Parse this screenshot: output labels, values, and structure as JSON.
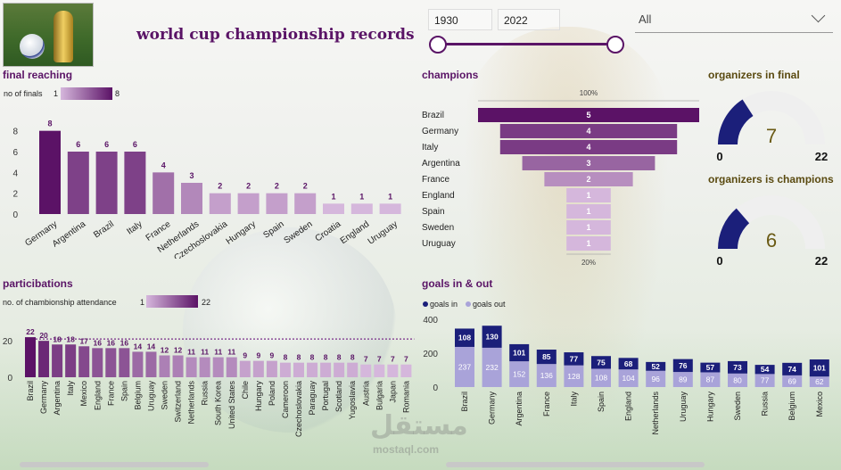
{
  "header": {
    "title": "world cup championship records",
    "year_from": "1930",
    "year_to": "2022",
    "filter_value": "All"
  },
  "colors": {
    "accent": "#5a1466",
    "navy": "#1b1f7a",
    "lavender": "#a9a3d9",
    "gauge_bg": "#efefef"
  },
  "final_reaching": {
    "title": "final reaching",
    "legend_label": "no of finals",
    "legend_min": "1",
    "legend_max": "8",
    "chart_data": {
      "type": "bar",
      "categories": [
        "Germany",
        "Argentina",
        "Brazil",
        "Italy",
        "France",
        "Netherlands",
        "Czechoslovakia",
        "Hungary",
        "Spain",
        "Sweden",
        "Croatia",
        "England",
        "Uruguay"
      ],
      "values": [
        8,
        6,
        6,
        6,
        4,
        3,
        2,
        2,
        2,
        2,
        1,
        1,
        1
      ],
      "yticks": [
        0,
        2,
        4,
        6,
        8
      ],
      "ylim": [
        0,
        9
      ]
    }
  },
  "champions": {
    "title": "champions",
    "top_pct": "100%",
    "bottom_pct": "20%",
    "chart_data": {
      "type": "bar",
      "orientation": "funnel",
      "categories": [
        "Brazil",
        "Germany",
        "Italy",
        "Argentina",
        "France",
        "England",
        "Spain",
        "Sweden",
        "Uruguay"
      ],
      "values": [
        5,
        4,
        4,
        3,
        2,
        1,
        1,
        1,
        1
      ]
    }
  },
  "organizers_in_final": {
    "title": "organizers in final",
    "value": 7,
    "min": "0",
    "max": "22"
  },
  "organizers_champions": {
    "title": "organizers is champions",
    "value": 6,
    "min": "0",
    "max": "22"
  },
  "participations": {
    "title": "particibations",
    "legend_label": "no. of chambionship attendance",
    "legend_min": "1",
    "legend_max": "22",
    "chart_data": {
      "type": "bar",
      "categories": [
        "Brazil",
        "Germany",
        "Argentina",
        "Italy",
        "Mexico",
        "England",
        "France",
        "Spain",
        "Belgium",
        "Uruguay",
        "Sweden",
        "Switzerland",
        "Netherlands",
        "Russia",
        "South Korea",
        "United States",
        "Chile",
        "Hungary",
        "Poland",
        "Cameroon",
        "Czechoslovakia",
        "Paraguay",
        "Portugal",
        "Scotland",
        "Yugoslavia",
        "Austria",
        "Bulgaria",
        "Japan",
        "Romania"
      ],
      "values": [
        22,
        20,
        18,
        18,
        17,
        16,
        16,
        16,
        14,
        14,
        12,
        12,
        11,
        11,
        11,
        11,
        9,
        9,
        9,
        8,
        8,
        8,
        8,
        8,
        8,
        7,
        7,
        7,
        7
      ],
      "yticks": [
        0,
        20
      ],
      "ylim": [
        0,
        24
      ],
      "reference_line": 21
    }
  },
  "goals": {
    "title": "goals in & out",
    "chart_data": {
      "type": "bar",
      "stacked": true,
      "categories": [
        "Brazil",
        "Germany",
        "Argentina",
        "France",
        "Italy",
        "Spain",
        "England",
        "Netherlands",
        "Uruguay",
        "Hungary",
        "Sweden",
        "Russia",
        "Belgium",
        "Mexico"
      ],
      "series": [
        {
          "name": "goals in",
          "values": [
            237,
            232,
            152,
            136,
            128,
            108,
            104,
            96,
            89,
            87,
            80,
            77,
            69,
            62
          ]
        },
        {
          "name": "goals out",
          "values": [
            108,
            130,
            101,
            85,
            77,
            75,
            68,
            52,
            76,
            57,
            73,
            54,
            74,
            101
          ]
        }
      ],
      "yticks": [
        0,
        200,
        400
      ],
      "ylim": [
        0,
        400
      ]
    }
  },
  "watermark": {
    "line1": "مستقل",
    "line2": "mostaql.com"
  }
}
